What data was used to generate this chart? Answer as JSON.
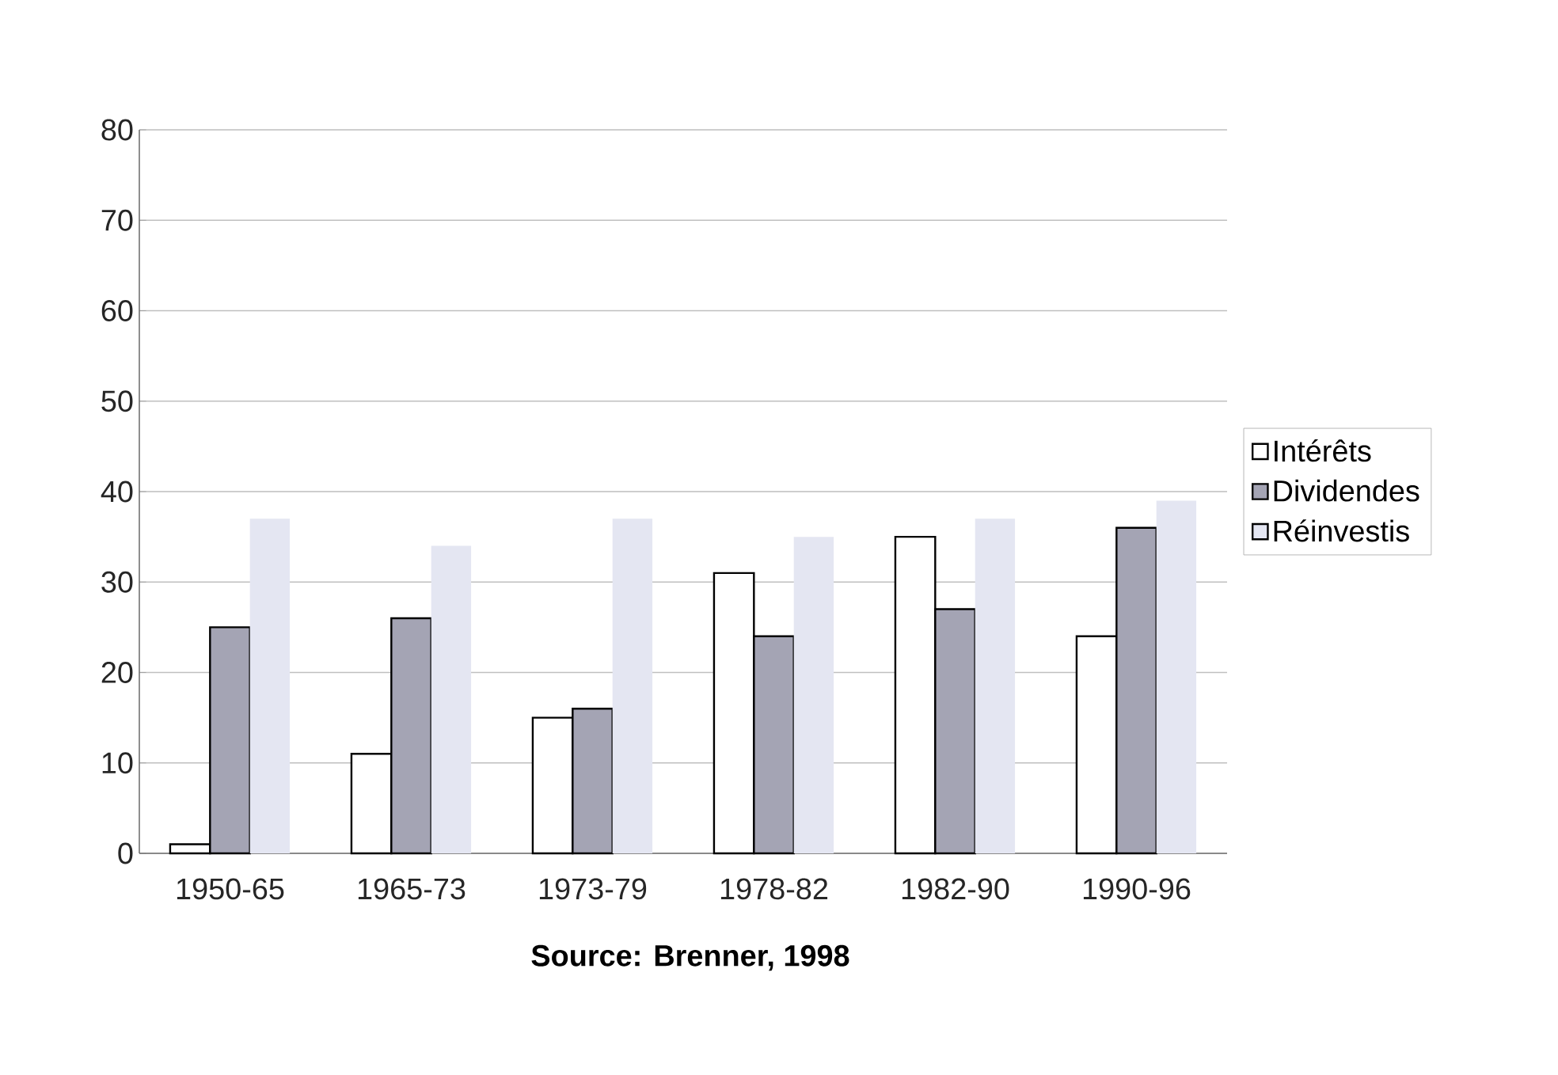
{
  "chart_data": {
    "type": "bar",
    "categories": [
      "1950-65",
      "1965-73",
      "1973-79",
      "1978-82",
      "1982-90",
      "1990-96"
    ],
    "series": [
      {
        "name": "Intérêts",
        "color": "#ffffff",
        "values": [
          1,
          11,
          15,
          31,
          35,
          24
        ]
      },
      {
        "name": "Dividendes",
        "color": "#a4a4b4",
        "values": [
          25,
          26,
          16,
          24,
          27,
          36
        ]
      },
      {
        "name": "Réinvestis",
        "color": "#e4e6f2",
        "values": [
          37,
          34,
          37,
          35,
          37,
          39
        ]
      }
    ],
    "ylim": [
      0,
      80
    ],
    "yticks": [
      0,
      10,
      20,
      30,
      40,
      50,
      60,
      70,
      80
    ],
    "grid": "y",
    "legend": "right",
    "annotations": [
      "**Source: Brenner, 1998**"
    ]
  }
}
